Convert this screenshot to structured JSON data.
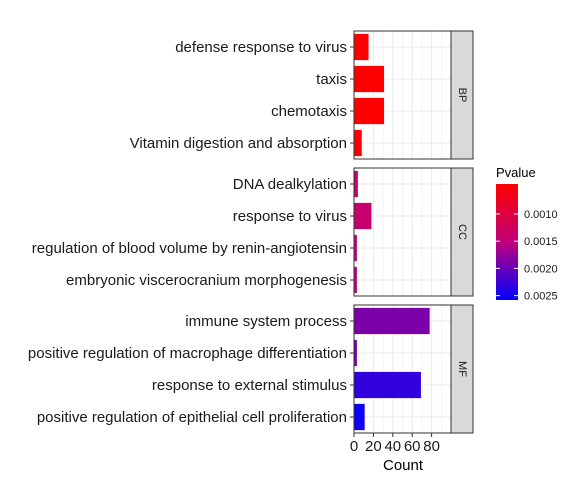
{
  "chart_data": {
    "type": "bar",
    "orientation": "horizontal",
    "xlabel": "Count",
    "xlim": [
      0,
      100
    ],
    "x_ticks": [
      0,
      20,
      40,
      60,
      80
    ],
    "grid": true,
    "legend": {
      "title": "Pvalue",
      "placement": "right",
      "ticks": [
        0.001,
        0.0015,
        0.002,
        0.0025
      ],
      "tick_labels": [
        "0.0010",
        "0.0015",
        "0.0020",
        "0.0025"
      ],
      "range": [
        0.00045,
        0.00258
      ],
      "low_color": "#ff0000",
      "high_color": "#0000ff"
    },
    "facets": [
      {
        "name": "BP",
        "terms": [
          {
            "label": "defense response to virus",
            "count": 15,
            "pvalue": 0.00047
          },
          {
            "label": "taxis",
            "count": 31,
            "pvalue": 0.00047
          },
          {
            "label": "chemotaxis",
            "count": 31,
            "pvalue": 0.00047
          },
          {
            "label": "Vitamin digestion and absorption",
            "count": 8,
            "pvalue": 0.0005
          }
        ]
      },
      {
        "name": "CC",
        "terms": [
          {
            "label": "DNA dealkylation",
            "count": 4,
            "pvalue": 0.0014
          },
          {
            "label": "response to virus",
            "count": 18,
            "pvalue": 0.0014
          },
          {
            "label": "regulation of blood volume by renin-angiotensin",
            "count": 3,
            "pvalue": 0.0015
          },
          {
            "label": "embryonic viscerocranium morphogenesis",
            "count": 3,
            "pvalue": 0.0015
          }
        ]
      },
      {
        "name": "MF",
        "terms": [
          {
            "label": "immune system process",
            "count": 78,
            "pvalue": 0.0019
          },
          {
            "label": "positive regulation of macrophage differentiation",
            "count": 3,
            "pvalue": 0.0019
          },
          {
            "label": "response to external stimulus",
            "count": 69,
            "pvalue": 0.0023
          },
          {
            "label": "positive regulation of epithelial cell proliferation",
            "count": 11,
            "pvalue": 0.0025
          }
        ]
      }
    ]
  }
}
